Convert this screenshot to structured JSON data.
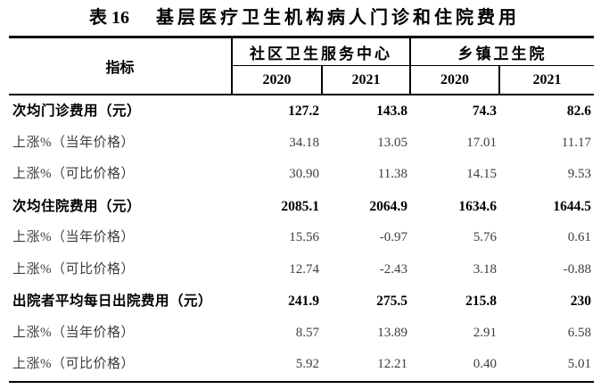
{
  "title": {
    "prefix": "表 16",
    "text": "基层医疗卫生机构病人门诊和住院费用"
  },
  "table": {
    "header": {
      "indicator": "指标",
      "groups": [
        {
          "label": "社区卫生服务中心",
          "years": [
            "2020",
            "2021"
          ]
        },
        {
          "label": "乡镇卫生院",
          "years": [
            "2020",
            "2021"
          ]
        }
      ]
    },
    "rows": [
      {
        "label": "次均门诊费用（元）",
        "bold": true,
        "values": [
          "127.2",
          "143.8",
          "74.3",
          "82.6"
        ]
      },
      {
        "label": "上涨%（当年价格）",
        "bold": false,
        "values": [
          "34.18",
          "13.05",
          "17.01",
          "11.17"
        ]
      },
      {
        "label": "上涨%（可比价格）",
        "bold": false,
        "values": [
          "30.90",
          "11.38",
          "14.15",
          "9.53"
        ]
      },
      {
        "label": "次均住院费用（元）",
        "bold": true,
        "values": [
          "2085.1",
          "2064.9",
          "1634.6",
          "1644.5"
        ]
      },
      {
        "label": "上涨%（当年价格）",
        "bold": false,
        "values": [
          "15.56",
          "-0.97",
          "5.76",
          "0.61"
        ]
      },
      {
        "label": "上涨%（可比价格）",
        "bold": false,
        "values": [
          "12.74",
          "-2.43",
          "3.18",
          "-0.88"
        ]
      },
      {
        "label": "出院者平均每日出院费用（元）",
        "bold": true,
        "values": [
          "241.9",
          "275.5",
          "215.8",
          "230"
        ]
      },
      {
        "label": "上涨%（当年价格）",
        "bold": false,
        "values": [
          "8.57",
          "13.89",
          "2.91",
          "6.58"
        ]
      },
      {
        "label": "上涨%（可比价格）",
        "bold": false,
        "values": [
          "5.92",
          "12.21",
          "0.40",
          "5.01"
        ]
      }
    ]
  },
  "colors": {
    "background": "#ffffff",
    "text": "#000000",
    "secondary_text": "#3d3d3d",
    "border": "#000000"
  }
}
